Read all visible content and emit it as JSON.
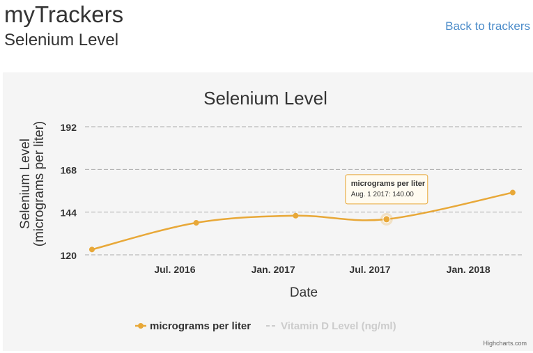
{
  "header": {
    "app_title": "myTrackers",
    "subtitle": "Selenium Level",
    "back_link": "Back to trackers"
  },
  "chart_data": {
    "type": "line",
    "title": "Selenium Level",
    "xlabel": "Date",
    "ylabel_line1": "Selenium Level",
    "ylabel_line2": "(micrograms per liter)",
    "x_tick_labels": [
      "Jul. 2016",
      "Jan. 2017",
      "Jul. 2017",
      "Jan. 2018"
    ],
    "x_ticks": [
      "2016-07-01",
      "2017-01-01",
      "2017-07-01",
      "2018-01-01"
    ],
    "y_ticks": [
      120,
      144,
      168,
      192
    ],
    "ylim": [
      120,
      192
    ],
    "xlim": [
      "2016-01-15",
      "2018-04-15"
    ],
    "grid": true,
    "legend_position": "bottom-center",
    "series": [
      {
        "name": "micrograms per liter",
        "color": "#e8a838",
        "visible": true,
        "points": [
          {
            "x": "2016-01-28",
            "y": 123
          },
          {
            "x": "2016-08-10",
            "y": 138
          },
          {
            "x": "2017-02-12",
            "y": 142
          },
          {
            "x": "2017-08-01",
            "y": 140
          },
          {
            "x": "2018-03-25",
            "y": 155
          }
        ]
      },
      {
        "name": "Vitamin D Level (ng/ml)",
        "color": "#cccccc",
        "visible": false,
        "points": []
      }
    ],
    "tooltip": {
      "series_label": "micrograms per liter",
      "value_label": "Aug. 1 2017: 140.00",
      "point_index": 3
    },
    "credits": "Highcharts.com"
  }
}
